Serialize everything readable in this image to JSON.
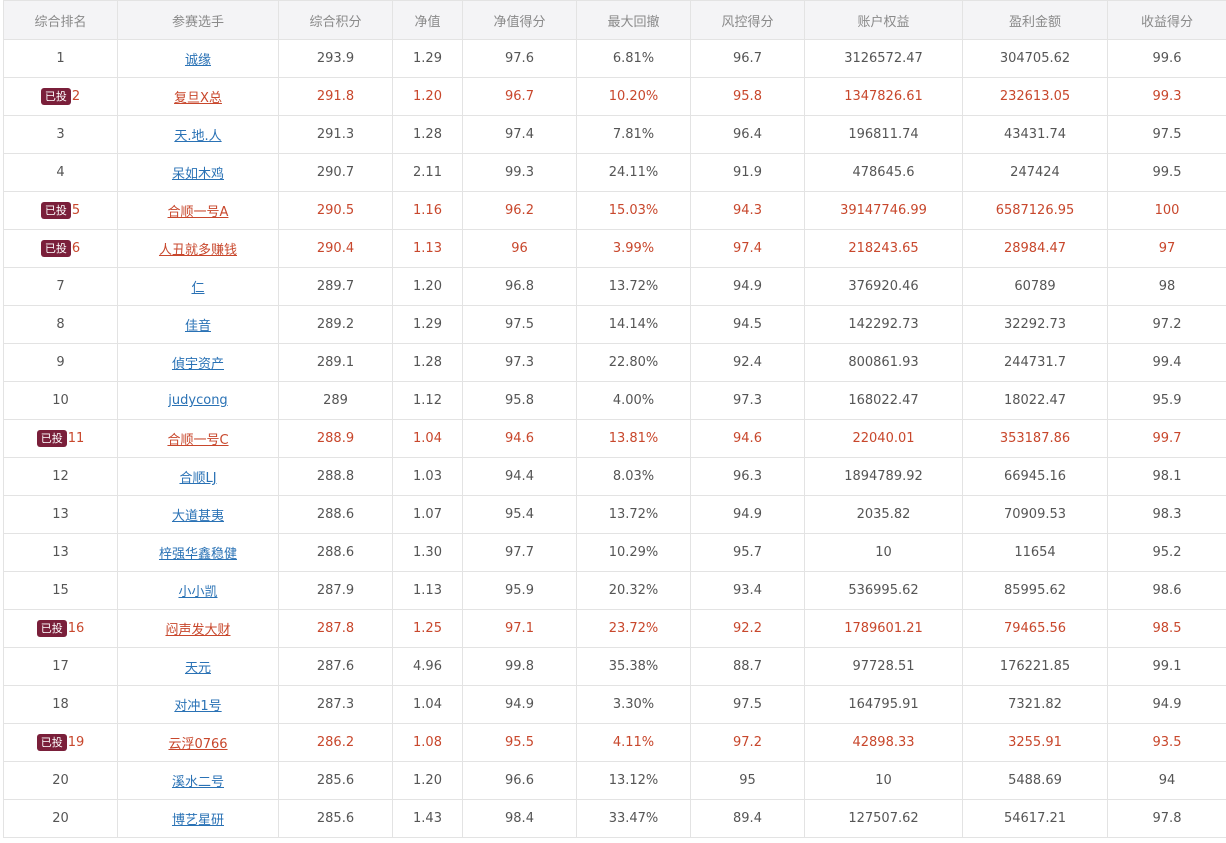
{
  "columns": [
    "综合排名",
    "参赛选手",
    "综合积分",
    "净值",
    "净值得分",
    "最大回撤",
    "风控得分",
    "账户权益",
    "盈利金额",
    "收益得分"
  ],
  "badge_label": "已投",
  "colors": {
    "highlight_text": "#c8472c",
    "link": "#2a72b5",
    "badge_bg": "#7a1f3a",
    "header_bg": "#f4f4f6"
  },
  "rows": [
    {
      "rank": "1",
      "name": "诚缘",
      "score": "293.9",
      "nav": "1.29",
      "nav_score": "97.6",
      "max_dd": "6.81%",
      "risk_score": "96.7",
      "equity": "3126572.47",
      "profit": "304705.62",
      "return_score": "99.6",
      "invested": false
    },
    {
      "rank": "2",
      "name": "复旦X总",
      "score": "291.8",
      "nav": "1.20",
      "nav_score": "96.7",
      "max_dd": "10.20%",
      "risk_score": "95.8",
      "equity": "1347826.61",
      "profit": "232613.05",
      "return_score": "99.3",
      "invested": true
    },
    {
      "rank": "3",
      "name": "天.地.人",
      "score": "291.3",
      "nav": "1.28",
      "nav_score": "97.4",
      "max_dd": "7.81%",
      "risk_score": "96.4",
      "equity": "196811.74",
      "profit": "43431.74",
      "return_score": "97.5",
      "invested": false
    },
    {
      "rank": "4",
      "name": "呆如木鸡",
      "score": "290.7",
      "nav": "2.11",
      "nav_score": "99.3",
      "max_dd": "24.11%",
      "risk_score": "91.9",
      "equity": "478645.6",
      "profit": "247424",
      "return_score": "99.5",
      "invested": false
    },
    {
      "rank": "5",
      "name": "合顺一号A",
      "score": "290.5",
      "nav": "1.16",
      "nav_score": "96.2",
      "max_dd": "15.03%",
      "risk_score": "94.3",
      "equity": "39147746.99",
      "profit": "6587126.95",
      "return_score": "100",
      "invested": true
    },
    {
      "rank": "6",
      "name": "人丑就多赚钱",
      "score": "290.4",
      "nav": "1.13",
      "nav_score": "96",
      "max_dd": "3.99%",
      "risk_score": "97.4",
      "equity": "218243.65",
      "profit": "28984.47",
      "return_score": "97",
      "invested": true
    },
    {
      "rank": "7",
      "name": "仁",
      "score": "289.7",
      "nav": "1.20",
      "nav_score": "96.8",
      "max_dd": "13.72%",
      "risk_score": "94.9",
      "equity": "376920.46",
      "profit": "60789",
      "return_score": "98",
      "invested": false
    },
    {
      "rank": "8",
      "name": "佳音",
      "score": "289.2",
      "nav": "1.29",
      "nav_score": "97.5",
      "max_dd": "14.14%",
      "risk_score": "94.5",
      "equity": "142292.73",
      "profit": "32292.73",
      "return_score": "97.2",
      "invested": false
    },
    {
      "rank": "9",
      "name": "偵宇资产",
      "score": "289.1",
      "nav": "1.28",
      "nav_score": "97.3",
      "max_dd": "22.80%",
      "risk_score": "92.4",
      "equity": "800861.93",
      "profit": "244731.7",
      "return_score": "99.4",
      "invested": false
    },
    {
      "rank": "10",
      "name": "judycong",
      "score": "289",
      "nav": "1.12",
      "nav_score": "95.8",
      "max_dd": "4.00%",
      "risk_score": "97.3",
      "equity": "168022.47",
      "profit": "18022.47",
      "return_score": "95.9",
      "invested": false
    },
    {
      "rank": "11",
      "name": "合顺一号C",
      "score": "288.9",
      "nav": "1.04",
      "nav_score": "94.6",
      "max_dd": "13.81%",
      "risk_score": "94.6",
      "equity": "22040.01",
      "profit": "353187.86",
      "return_score": "99.7",
      "invested": true
    },
    {
      "rank": "12",
      "name": "合顺LJ",
      "score": "288.8",
      "nav": "1.03",
      "nav_score": "94.4",
      "max_dd": "8.03%",
      "risk_score": "96.3",
      "equity": "1894789.92",
      "profit": "66945.16",
      "return_score": "98.1",
      "invested": false
    },
    {
      "rank": "13",
      "name": "大道甚夷",
      "score": "288.6",
      "nav": "1.07",
      "nav_score": "95.4",
      "max_dd": "13.72%",
      "risk_score": "94.9",
      "equity": "2035.82",
      "profit": "70909.53",
      "return_score": "98.3",
      "invested": false
    },
    {
      "rank": "13",
      "name": "梓强华鑫稳健",
      "score": "288.6",
      "nav": "1.30",
      "nav_score": "97.7",
      "max_dd": "10.29%",
      "risk_score": "95.7",
      "equity": "10",
      "profit": "11654",
      "return_score": "95.2",
      "invested": false
    },
    {
      "rank": "15",
      "name": "小小凯",
      "score": "287.9",
      "nav": "1.13",
      "nav_score": "95.9",
      "max_dd": "20.32%",
      "risk_score": "93.4",
      "equity": "536995.62",
      "profit": "85995.62",
      "return_score": "98.6",
      "invested": false
    },
    {
      "rank": "16",
      "name": "闷声发大财",
      "score": "287.8",
      "nav": "1.25",
      "nav_score": "97.1",
      "max_dd": "23.72%",
      "risk_score": "92.2",
      "equity": "1789601.21",
      "profit": "79465.56",
      "return_score": "98.5",
      "invested": true
    },
    {
      "rank": "17",
      "name": "天元",
      "score": "287.6",
      "nav": "4.96",
      "nav_score": "99.8",
      "max_dd": "35.38%",
      "risk_score": "88.7",
      "equity": "97728.51",
      "profit": "176221.85",
      "return_score": "99.1",
      "invested": false
    },
    {
      "rank": "18",
      "name": "对冲1号",
      "score": "287.3",
      "nav": "1.04",
      "nav_score": "94.9",
      "max_dd": "3.30%",
      "risk_score": "97.5",
      "equity": "164795.91",
      "profit": "7321.82",
      "return_score": "94.9",
      "invested": false
    },
    {
      "rank": "19",
      "name": "云浮0766",
      "score": "286.2",
      "nav": "1.08",
      "nav_score": "95.5",
      "max_dd": "4.11%",
      "risk_score": "97.2",
      "equity": "42898.33",
      "profit": "3255.91",
      "return_score": "93.5",
      "invested": true
    },
    {
      "rank": "20",
      "name": "溪水二号",
      "score": "285.6",
      "nav": "1.20",
      "nav_score": "96.6",
      "max_dd": "13.12%",
      "risk_score": "95",
      "equity": "10",
      "profit": "5488.69",
      "return_score": "94",
      "invested": false
    },
    {
      "rank": "20",
      "name": "博艺星研",
      "score": "285.6",
      "nav": "1.43",
      "nav_score": "98.4",
      "max_dd": "33.47%",
      "risk_score": "89.4",
      "equity": "127507.62",
      "profit": "54617.21",
      "return_score": "97.8",
      "invested": false
    }
  ]
}
